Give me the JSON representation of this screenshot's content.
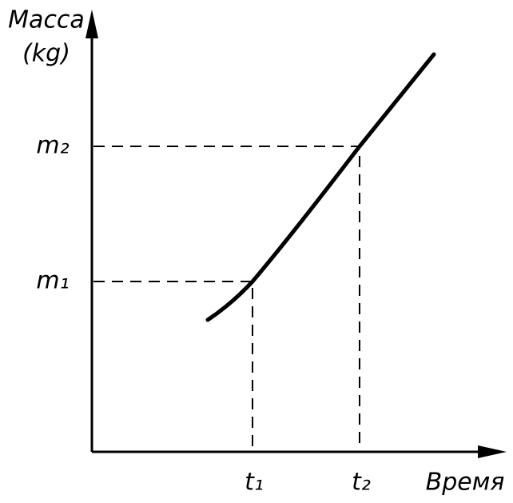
{
  "y_axis": {
    "label_lines": [
      "Масса",
      "(kg)"
    ],
    "ticks": [
      "m₂",
      "m₁"
    ]
  },
  "x_axis": {
    "label": "Время",
    "ticks": [
      "t₁",
      "t₂"
    ]
  }
}
